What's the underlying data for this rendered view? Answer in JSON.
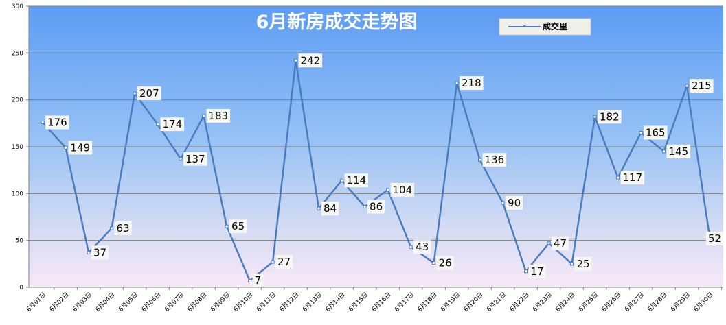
{
  "chart_data": {
    "type": "line",
    "title": "6月新房成交走势图",
    "xlabel": "",
    "ylabel": "",
    "ylim": [
      0,
      300
    ],
    "yticks": [
      "0",
      "50",
      "100",
      "150",
      "200",
      "250",
      "300"
    ],
    "categories": [
      "6月01日",
      "6月02日",
      "6月03日",
      "6月04日",
      "6月05日",
      "6月06日",
      "6月07日",
      "6月08日",
      "6月09日",
      "6月10日",
      "6月11日",
      "6月12日",
      "6月13日",
      "6月14日",
      "6月15日",
      "6月16日",
      "6月17日",
      "6月18日",
      "6月19日",
      "6月20日",
      "6月21日",
      "6月22日",
      "6月23日",
      "6月24日",
      "6月25日",
      "6月26日",
      "6月27日",
      "6月28日",
      "6月29日",
      "6月30日"
    ],
    "series": [
      {
        "name": "成交里",
        "values": [
          176,
          149,
          37,
          63,
          207,
          174,
          137,
          183,
          65,
          7,
          27,
          242,
          84,
          114,
          86,
          104,
          43,
          26,
          218,
          136,
          90,
          17,
          47,
          25,
          182,
          117,
          165,
          145,
          215,
          52
        ]
      }
    ],
    "grid": true,
    "legend_position": "top-right",
    "colors": {
      "line": "#4a7cc0",
      "bg_top": "#5f9ef5",
      "bg_bottom": "#f6e6f7",
      "grid": "#7d7d7d"
    }
  }
}
